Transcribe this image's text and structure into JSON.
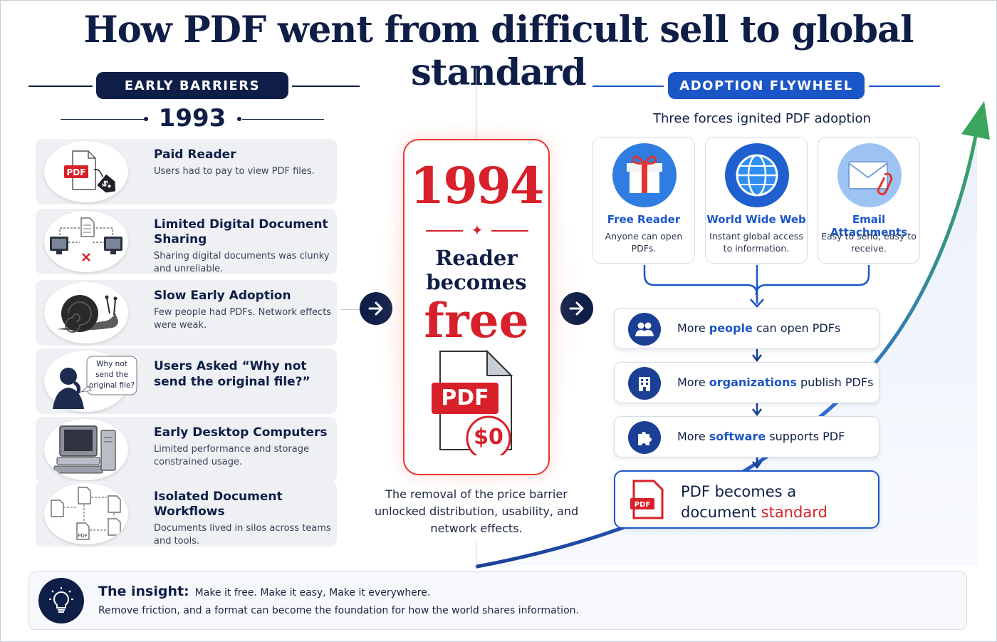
{
  "title": "How PDF went from difficult sell to global standard",
  "left": {
    "section_label": "EARLY BARRIERS",
    "year": "1993",
    "cards": [
      {
        "heading": "Paid Reader",
        "body": "Users had to pay to view PDF files.",
        "icon": "pdf-price-tag-icon",
        "icon_text": "PDF"
      },
      {
        "heading": "Limited Digital Document Sharing",
        "body": "Sharing digital documents was clunky and unreliable.",
        "icon": "disconnected-computers-icon"
      },
      {
        "heading": "Slow Early Adoption",
        "body": "Few people had PDFs. Network effects were weak.",
        "icon": "snail-icon"
      },
      {
        "heading": "Users Asked “Why not send the original file?”",
        "body": "",
        "icon": "thinking-person-icon",
        "bubble": "Why not send the original file?"
      },
      {
        "heading": "Early Desktop Computers",
        "body": "Limited performance and storage constrained usage.",
        "icon": "desktop-computer-icon"
      },
      {
        "heading": "Isolated Document Workflows",
        "body": "Documents lived in silos across teams and tools.",
        "icon": "document-silos-icon",
        "icon_text": "PDF"
      }
    ]
  },
  "center": {
    "year": "1994",
    "headline_line1": "Reader",
    "headline_line2": "becomes",
    "headline_free": "free",
    "badge_pdf": "PDF",
    "badge_price": "$0",
    "caption": "The removal of the price barrier unlocked distribution, usability, and network effects."
  },
  "right": {
    "section_label": "ADOPTION FLYWHEEL",
    "subtitle": "Three forces ignited PDF adoption",
    "forces": [
      {
        "heading": "Free Reader",
        "body": "Anyone can open PDFs.",
        "icon": "gift-icon"
      },
      {
        "heading": "World Wide Web",
        "body": "Instant global access to information.",
        "icon": "globe-icon"
      },
      {
        "heading": "Email Attachments",
        "body": "Easy to send, easy to receive.",
        "icon": "envelope-attachment-icon"
      }
    ],
    "steps": [
      {
        "pre": "More ",
        "highlight": "people",
        "post": " can open PDFs",
        "icon": "people-icon"
      },
      {
        "pre": "More ",
        "highlight": "organizations",
        "post": " publish PDFs",
        "icon": "building-icon"
      },
      {
        "pre": "More ",
        "highlight": "software",
        "post": " supports PDF",
        "icon": "puzzle-icon"
      }
    ],
    "final": {
      "line1": "PDF becomes a",
      "pre": "document ",
      "highlight": "standard",
      "icon_text": "PDF"
    }
  },
  "insight": {
    "heading": "The insight:",
    "line1": "Make it free. Make it easy, Make it everywhere.",
    "line2": "Remove friction, and a format can become the foundation for how the world shares information."
  },
  "colors": {
    "navy": "#0f1e47",
    "blue": "#1b56c8",
    "red": "#d8202a",
    "green": "#3aa55d"
  }
}
